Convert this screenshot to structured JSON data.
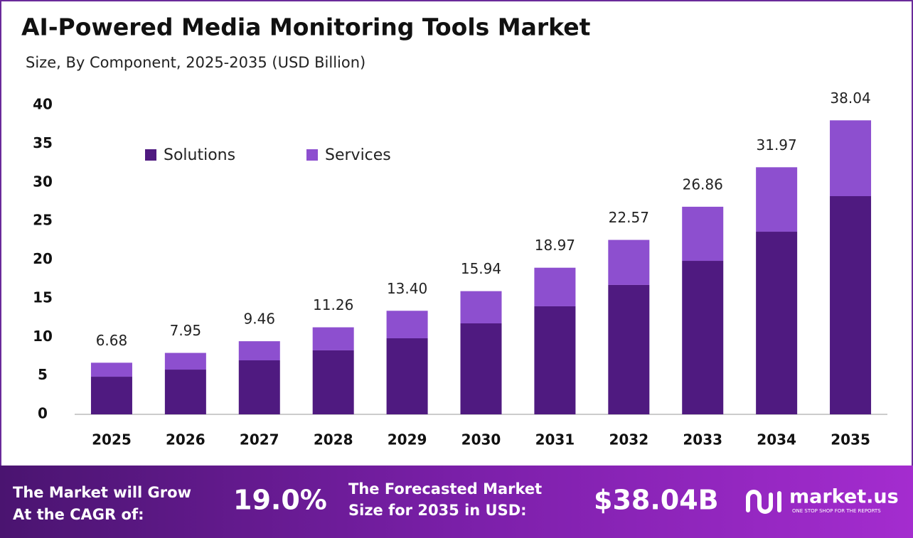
{
  "chart_data": {
    "type": "stacked_bar",
    "title": "AI-Powered Media Monitoring Tools Market",
    "subtitle": "Size, By Component, 2025-2035 (USD Billion)",
    "categories": [
      "2025",
      "2026",
      "2027",
      "2028",
      "2029",
      "2030",
      "2031",
      "2032",
      "2033",
      "2034",
      "2035"
    ],
    "series": [
      {
        "name": "Solutions",
        "color": "#4f1a80",
        "values": [
          4.87,
          5.79,
          6.99,
          8.28,
          9.84,
          11.77,
          13.98,
          16.74,
          19.86,
          23.63,
          28.23
        ]
      },
      {
        "name": "Services",
        "color": "#8d4fcf",
        "values": [
          1.81,
          2.16,
          2.47,
          2.98,
          3.56,
          4.17,
          4.99,
          5.83,
          7.0,
          8.34,
          9.81
        ]
      }
    ],
    "totals": [
      6.68,
      7.95,
      9.46,
      11.26,
      13.4,
      15.94,
      18.97,
      22.57,
      26.86,
      31.97,
      38.04
    ],
    "value_labels": [
      "6.68",
      "7.95",
      "9.46",
      "11.26",
      "13.40",
      "15.94",
      "18.97",
      "22.57",
      "26.86",
      "31.97",
      "38.04"
    ],
    "ylim": [
      0,
      40
    ],
    "yticks": [
      0,
      5,
      10,
      15,
      20,
      25,
      30,
      35,
      40
    ],
    "grid": false
  },
  "footer": {
    "cagr_text_1": "The Market will Grow",
    "cagr_text_2": "At the CAGR of:",
    "cagr_value": "19.0%",
    "forecast_text_1": "The Forecasted Market",
    "forecast_text_2": "Size for 2035 in USD:",
    "forecast_value": "$38.04B",
    "brand": "market.us",
    "tagline": "ONE STOP SHOP FOR THE REPORTS"
  }
}
